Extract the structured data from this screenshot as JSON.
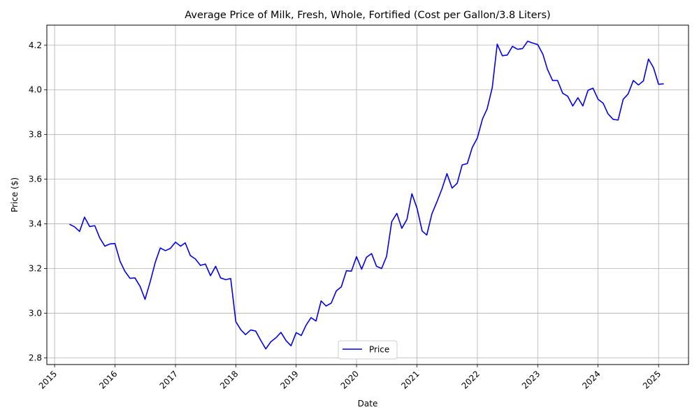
{
  "chart_data": {
    "type": "line",
    "title": "Average Price of Milk, Fresh, Whole, Fortified (Cost per Gallon/3.8 Liters)",
    "xlabel": "Date",
    "ylabel": "Price ($)",
    "xlim": [
      "2014-11-15",
      "2025-07-01"
    ],
    "ylim": [
      2.77,
      4.29
    ],
    "x_ticks": [
      "2015",
      "2016",
      "2017",
      "2018",
      "2019",
      "2020",
      "2021",
      "2022",
      "2023",
      "2024",
      "2025"
    ],
    "y_ticks": [
      "2.8",
      "3.0",
      "3.2",
      "3.4",
      "3.6",
      "3.8",
      "4.0",
      "4.2"
    ],
    "grid": true,
    "legend_position": "lower center",
    "series": [
      {
        "name": "Price",
        "color": "#0000ee",
        "points": [
          [
            "2015-04-01",
            3.398
          ],
          [
            "2015-05-01",
            3.387
          ],
          [
            "2015-06-01",
            3.366
          ],
          [
            "2015-07-01",
            3.43
          ],
          [
            "2015-08-01",
            3.388
          ],
          [
            "2015-09-01",
            3.392
          ],
          [
            "2015-10-01",
            3.337
          ],
          [
            "2015-11-01",
            3.3
          ],
          [
            "2015-12-01",
            3.31
          ],
          [
            "2016-01-01",
            3.312
          ],
          [
            "2016-02-01",
            3.232
          ],
          [
            "2016-03-01",
            3.188
          ],
          [
            "2016-04-01",
            3.156
          ],
          [
            "2016-05-01",
            3.158
          ],
          [
            "2016-06-01",
            3.12
          ],
          [
            "2016-07-01",
            3.062
          ],
          [
            "2016-08-01",
            3.14
          ],
          [
            "2016-09-01",
            3.228
          ],
          [
            "2016-10-01",
            3.292
          ],
          [
            "2016-11-01",
            3.28
          ],
          [
            "2016-12-01",
            3.29
          ],
          [
            "2017-01-01",
            3.318
          ],
          [
            "2017-02-01",
            3.3
          ],
          [
            "2017-03-01",
            3.315
          ],
          [
            "2017-04-01",
            3.258
          ],
          [
            "2017-05-01",
            3.243
          ],
          [
            "2017-06-01",
            3.214
          ],
          [
            "2017-07-01",
            3.22
          ],
          [
            "2017-08-01",
            3.168
          ],
          [
            "2017-09-01",
            3.21
          ],
          [
            "2017-10-01",
            3.158
          ],
          [
            "2017-11-01",
            3.15
          ],
          [
            "2017-12-01",
            3.155
          ],
          [
            "2018-01-01",
            2.962
          ],
          [
            "2018-02-01",
            2.925
          ],
          [
            "2018-03-01",
            2.904
          ],
          [
            "2018-04-01",
            2.925
          ],
          [
            "2018-05-01",
            2.92
          ],
          [
            "2018-06-01",
            2.878
          ],
          [
            "2018-07-01",
            2.84
          ],
          [
            "2018-08-01",
            2.872
          ],
          [
            "2018-09-01",
            2.89
          ],
          [
            "2018-10-01",
            2.914
          ],
          [
            "2018-11-01",
            2.877
          ],
          [
            "2018-12-01",
            2.854
          ],
          [
            "2019-01-01",
            2.913
          ],
          [
            "2019-02-01",
            2.9
          ],
          [
            "2019-03-01",
            2.945
          ],
          [
            "2019-04-01",
            2.98
          ],
          [
            "2019-05-01",
            2.965
          ],
          [
            "2019-06-01",
            3.055
          ],
          [
            "2019-07-01",
            3.032
          ],
          [
            "2019-08-01",
            3.045
          ],
          [
            "2019-09-01",
            3.1
          ],
          [
            "2019-10-01",
            3.118
          ],
          [
            "2019-11-01",
            3.19
          ],
          [
            "2019-12-01",
            3.188
          ],
          [
            "2020-01-01",
            3.253
          ],
          [
            "2020-02-01",
            3.197
          ],
          [
            "2020-03-01",
            3.25
          ],
          [
            "2020-04-01",
            3.267
          ],
          [
            "2020-05-01",
            3.21
          ],
          [
            "2020-06-01",
            3.2
          ],
          [
            "2020-07-01",
            3.255
          ],
          [
            "2020-08-01",
            3.41
          ],
          [
            "2020-09-01",
            3.447
          ],
          [
            "2020-10-01",
            3.38
          ],
          [
            "2020-11-01",
            3.42
          ],
          [
            "2020-12-01",
            3.535
          ],
          [
            "2021-01-01",
            3.47
          ],
          [
            "2021-02-01",
            3.368
          ],
          [
            "2021-03-01",
            3.35
          ],
          [
            "2021-04-01",
            3.445
          ],
          [
            "2021-05-01",
            3.498
          ],
          [
            "2021-06-01",
            3.557
          ],
          [
            "2021-07-01",
            3.625
          ],
          [
            "2021-08-01",
            3.56
          ],
          [
            "2021-09-01",
            3.582
          ],
          [
            "2021-10-01",
            3.664
          ],
          [
            "2021-11-01",
            3.67
          ],
          [
            "2021-12-01",
            3.742
          ],
          [
            "2022-01-01",
            3.785
          ],
          [
            "2022-02-01",
            3.87
          ],
          [
            "2022-03-01",
            3.915
          ],
          [
            "2022-04-01",
            4.01
          ],
          [
            "2022-05-01",
            4.205
          ],
          [
            "2022-06-01",
            4.153
          ],
          [
            "2022-07-01",
            4.156
          ],
          [
            "2022-08-01",
            4.195
          ],
          [
            "2022-09-01",
            4.182
          ],
          [
            "2022-10-01",
            4.185
          ],
          [
            "2022-11-01",
            4.218
          ],
          [
            "2022-12-01",
            4.21
          ],
          [
            "2023-01-01",
            4.203
          ],
          [
            "2023-02-01",
            4.16
          ],
          [
            "2023-03-01",
            4.092
          ],
          [
            "2023-04-01",
            4.042
          ],
          [
            "2023-05-01",
            4.042
          ],
          [
            "2023-06-01",
            3.985
          ],
          [
            "2023-07-01",
            3.972
          ],
          [
            "2023-08-01",
            3.928
          ],
          [
            "2023-09-01",
            3.965
          ],
          [
            "2023-10-01",
            3.928
          ],
          [
            "2023-11-01",
            3.998
          ],
          [
            "2023-12-01",
            4.008
          ],
          [
            "2024-01-01",
            3.958
          ],
          [
            "2024-02-01",
            3.94
          ],
          [
            "2024-03-01",
            3.893
          ],
          [
            "2024-04-01",
            3.868
          ],
          [
            "2024-05-01",
            3.865
          ],
          [
            "2024-06-01",
            3.958
          ],
          [
            "2024-07-01",
            3.982
          ],
          [
            "2024-08-01",
            4.042
          ],
          [
            "2024-09-01",
            4.022
          ],
          [
            "2024-10-01",
            4.04
          ],
          [
            "2024-11-01",
            4.138
          ],
          [
            "2024-12-01",
            4.1
          ],
          [
            "2025-01-01",
            4.025
          ],
          [
            "2025-02-01",
            4.027
          ]
        ]
      }
    ]
  }
}
